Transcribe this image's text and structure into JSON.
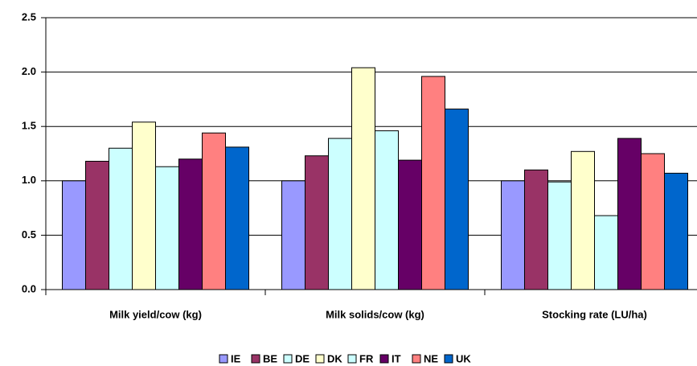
{
  "chart_data": {
    "type": "bar",
    "categories": [
      "Milk yield/cow (kg)",
      "Milk solids/cow (kg)",
      "Stocking rate (LU/ha)"
    ],
    "series": [
      {
        "name": "IE",
        "color": "#9999ff",
        "values": [
          1.0,
          1.0,
          1.0
        ]
      },
      {
        "name": "BE",
        "color": "#993366",
        "values": [
          1.18,
          1.23,
          1.1
        ]
      },
      {
        "name": "DE",
        "color": "#ccffff",
        "values": [
          1.3,
          1.39,
          0.99
        ]
      },
      {
        "name": "DK",
        "color": "#ffffcc",
        "values": [
          1.54,
          2.04,
          1.27
        ]
      },
      {
        "name": "FR",
        "color": "#ccffff",
        "values": [
          1.13,
          1.46,
          0.68
        ]
      },
      {
        "name": "IT",
        "color": "#660066",
        "values": [
          1.2,
          1.19,
          1.39
        ]
      },
      {
        "name": "NE",
        "color": "#ff8080",
        "values": [
          1.44,
          1.96,
          1.25
        ]
      },
      {
        "name": "UK",
        "color": "#0066cc",
        "values": [
          1.31,
          1.66,
          1.07
        ]
      }
    ],
    "ylim": [
      0,
      2.5
    ],
    "yticks": [
      {
        "value": 0,
        "label": "0.0"
      },
      0.5,
      {
        "value": 1,
        "label": "1.0"
      },
      1.5,
      {
        "value": 2,
        "label": "2.0"
      },
      2.5
    ],
    "grid": true,
    "legend": "bottom"
  }
}
